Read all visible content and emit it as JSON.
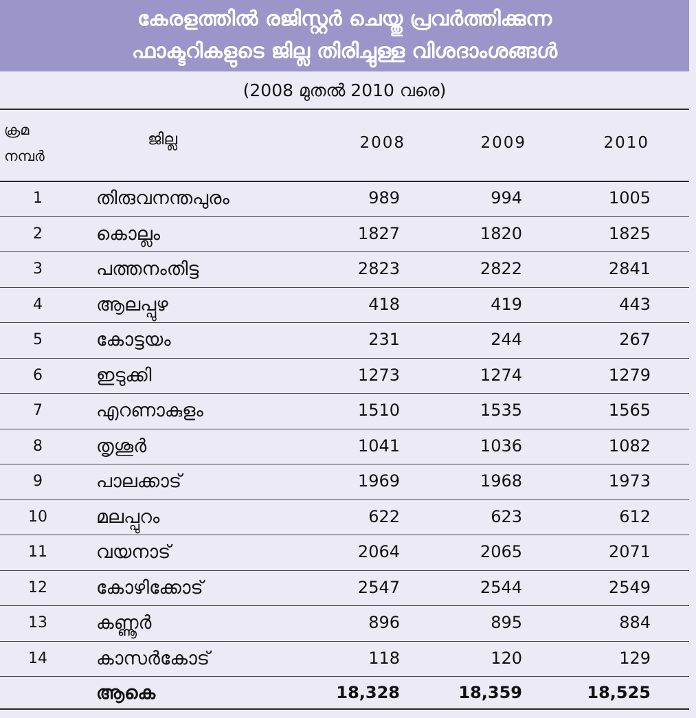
{
  "title": {
    "line1": "കേരളത്തിൽ രജിസ്റ്റർ ചെയ്തു പ്രവർത്തിക്കുന്ന",
    "line2": "ഫാക്ടറികളുടെ ജില്ല തിരിച്ചുള്ള വിശദാംശങ്ങൾ"
  },
  "subtitle": "(2008 മുതൽ 2010 വരെ)",
  "header": {
    "serial_line1": "ക്രമ",
    "serial_line2": "നമ്പർ",
    "district": "ജില്ല",
    "year1": "2008",
    "year2": "2009",
    "year3": "2010"
  },
  "rows": [
    {
      "num": "1",
      "district": "തിരുവനന്തപുരം",
      "v2008": "989",
      "v2009": "994",
      "v2010": "1005"
    },
    {
      "num": "2",
      "district": "കൊല്ലം",
      "v2008": "1827",
      "v2009": "1820",
      "v2010": "1825"
    },
    {
      "num": "3",
      "district": "പത്തനംതിട്ട",
      "v2008": "2823",
      "v2009": "2822",
      "v2010": "2841"
    },
    {
      "num": "4",
      "district": "ആലപ്പുഴ",
      "v2008": "418",
      "v2009": "419",
      "v2010": "443"
    },
    {
      "num": "5",
      "district": "കോട്ടയം",
      "v2008": "231",
      "v2009": "244",
      "v2010": "267"
    },
    {
      "num": "6",
      "district": "ഇടുക്കി",
      "v2008": "1273",
      "v2009": "1274",
      "v2010": "1279"
    },
    {
      "num": "7",
      "district": "എറണാകുളം",
      "v2008": "1510",
      "v2009": "1535",
      "v2010": "1565"
    },
    {
      "num": "8",
      "district": "തൃശൂർ",
      "v2008": "1041",
      "v2009": "1036",
      "v2010": "1082"
    },
    {
      "num": "9",
      "district": "പാലക്കാട്",
      "v2008": "1969",
      "v2009": "1968",
      "v2010": "1973"
    },
    {
      "num": "10",
      "district": "മലപ്പുറം",
      "v2008": "622",
      "v2009": "623",
      "v2010": "612"
    },
    {
      "num": "11",
      "district": "വയനാട്",
      "v2008": "2064",
      "v2009": "2065",
      "v2010": "2071"
    },
    {
      "num": "12",
      "district": "കോഴിക്കോട്",
      "v2008": "2547",
      "v2009": "2544",
      "v2010": "2549"
    },
    {
      "num": "13",
      "district": "കണ്ണൂർ",
      "v2008": "896",
      "v2009": "895",
      "v2010": "884"
    },
    {
      "num": "14",
      "district": "കാസർകോട്",
      "v2008": "118",
      "v2009": "120",
      "v2010": "129"
    }
  ],
  "total": {
    "label": "ആകെ",
    "v2008": "18,328",
    "v2009": "18,359",
    "v2010": "18,525"
  }
}
